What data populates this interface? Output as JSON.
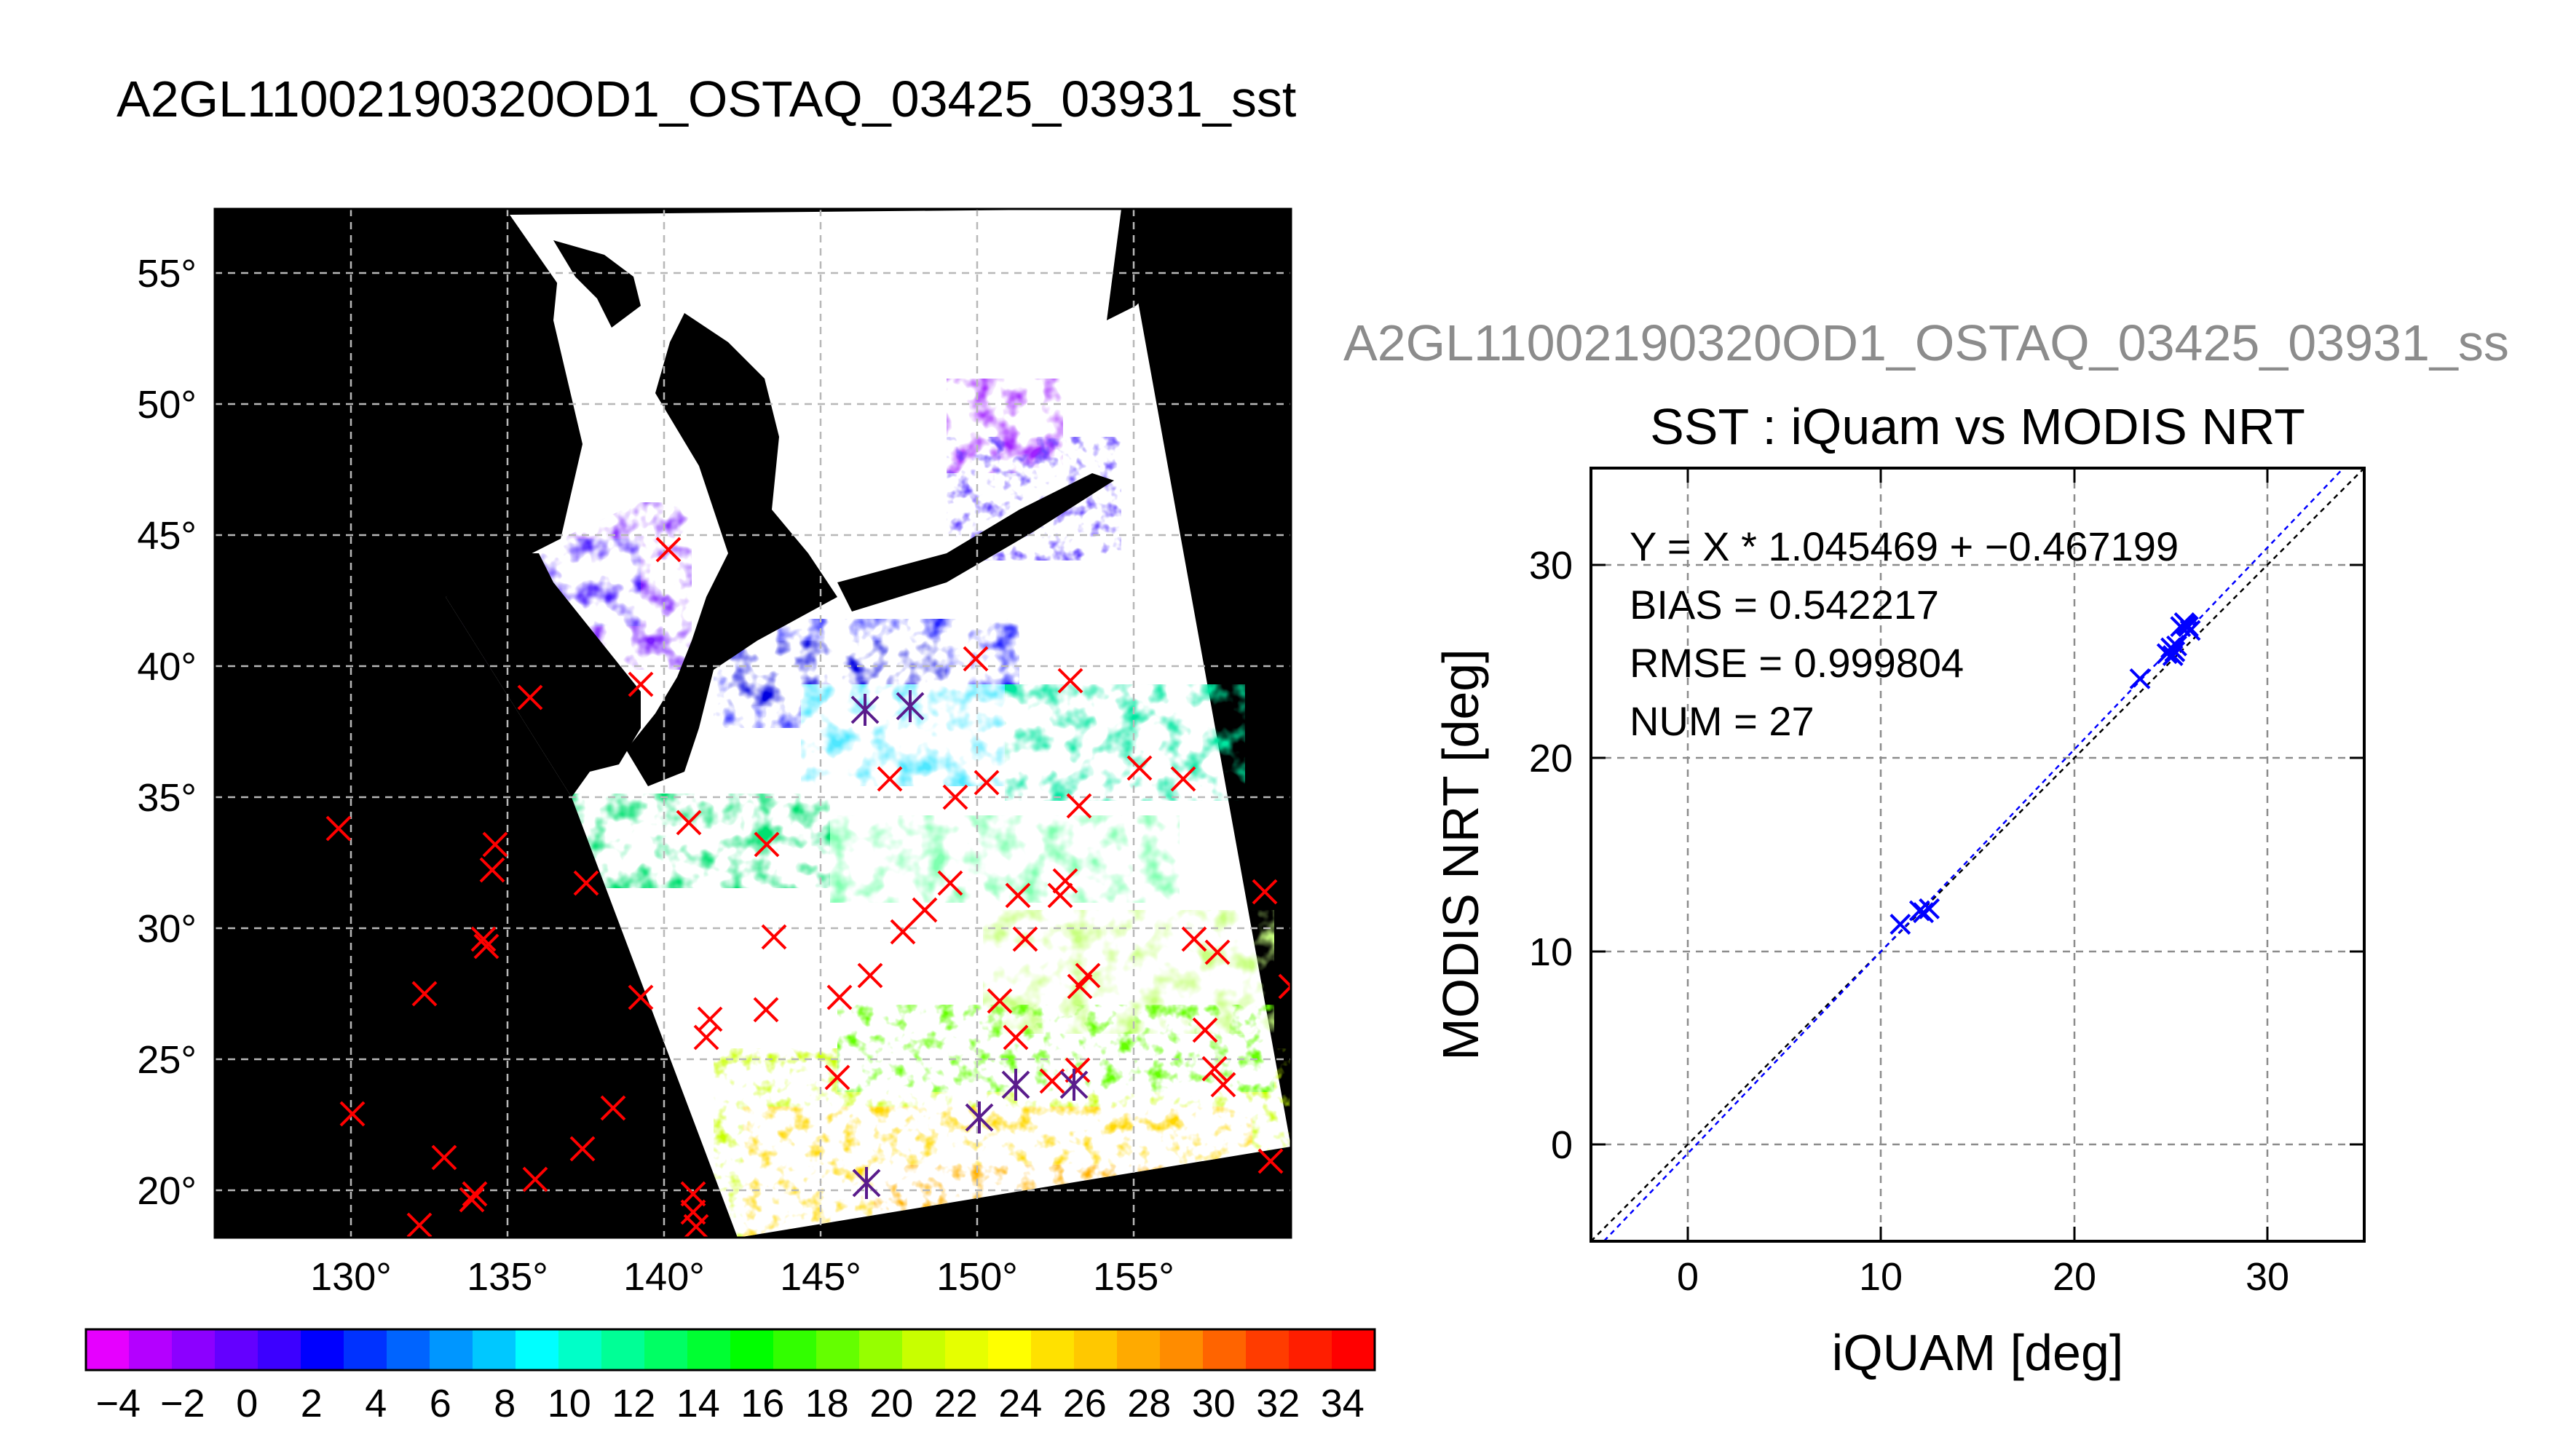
{
  "main_title": "A2GL11002190320OD1_OSTAQ_03425_03931_sst",
  "map": {
    "lat_labels": [
      "55°",
      "50°",
      "45°",
      "40°",
      "35°",
      "30°",
      "25°",
      "20°"
    ],
    "lon_labels": [
      "130°",
      "135°",
      "140°",
      "145°",
      "150°",
      "155°"
    ],
    "grid_lines": "dashed"
  },
  "colorbar": {
    "range": [
      -5,
      35
    ],
    "tick_labels": [
      "−4",
      "−2",
      "0",
      "2",
      "4",
      "6",
      "8",
      "10",
      "12",
      "14",
      "16",
      "18",
      "20",
      "22",
      "24",
      "26",
      "28",
      "30",
      "32",
      "34"
    ],
    "colors": [
      "#e600ff",
      "#b400ff",
      "#8c00ff",
      "#6400ff",
      "#3c00ff",
      "#0000ff",
      "#0032ff",
      "#0064ff",
      "#0096ff",
      "#00c8ff",
      "#00ffff",
      "#00ffc8",
      "#00ff96",
      "#00ff64",
      "#00ff32",
      "#00ff00",
      "#32ff00",
      "#64ff00",
      "#96ff00",
      "#c8ff00",
      "#e6ff00",
      "#ffff00",
      "#ffe100",
      "#ffc800",
      "#ffaa00",
      "#ff8c00",
      "#ff6400",
      "#ff3c00",
      "#ff1e00",
      "#ff0000"
    ]
  },
  "scatter": {
    "subtitle_gray": "A2GL11002190320OD1_OSTAQ_03425_03931_ss",
    "title": "SST : iQuam vs MODIS NRT",
    "stats": [
      "Y = X * 1.045469 + −0.467199",
      "BIAS = 0.542217",
      "RMSE = 0.999804",
      "NUM = 27"
    ],
    "xlabel": "iQUAM [deg]",
    "ylabel": "MODIS NRT [deg]",
    "x_tick_labels": [
      "0",
      "10",
      "20",
      "30"
    ],
    "y_tick_labels": [
      "0",
      "10",
      "20",
      "30"
    ]
  },
  "chart_data": {
    "type": "scatter",
    "title": "SST : iQuam vs MODIS NRT",
    "xlabel": "iQUAM [deg]",
    "ylabel": "MODIS NRT [deg]",
    "xlim": [
      -5,
      35
    ],
    "ylim": [
      -5,
      35
    ],
    "grid": true,
    "fit": {
      "slope": 1.045469,
      "intercept": -0.467199
    },
    "reference_line": {
      "slope": 1,
      "intercept": 0
    },
    "points": [
      {
        "x": 11.0,
        "y": 11.4
      },
      {
        "x": 12.2,
        "y": 12.0
      },
      {
        "x": 12.5,
        "y": 12.2
      },
      {
        "x": 12.0,
        "y": 12.1
      },
      {
        "x": 23.4,
        "y": 24.1
      },
      {
        "x": 24.8,
        "y": 25.4
      },
      {
        "x": 25.0,
        "y": 25.7
      },
      {
        "x": 25.2,
        "y": 25.5
      },
      {
        "x": 25.1,
        "y": 25.3
      },
      {
        "x": 25.5,
        "y": 26.8
      },
      {
        "x": 25.9,
        "y": 26.8
      },
      {
        "x": 26.0,
        "y": 26.6
      },
      {
        "x": 25.7,
        "y": 27.0
      },
      {
        "x": 25.3,
        "y": 25.8
      },
      {
        "x": 25.8,
        "y": 26.9
      }
    ]
  }
}
